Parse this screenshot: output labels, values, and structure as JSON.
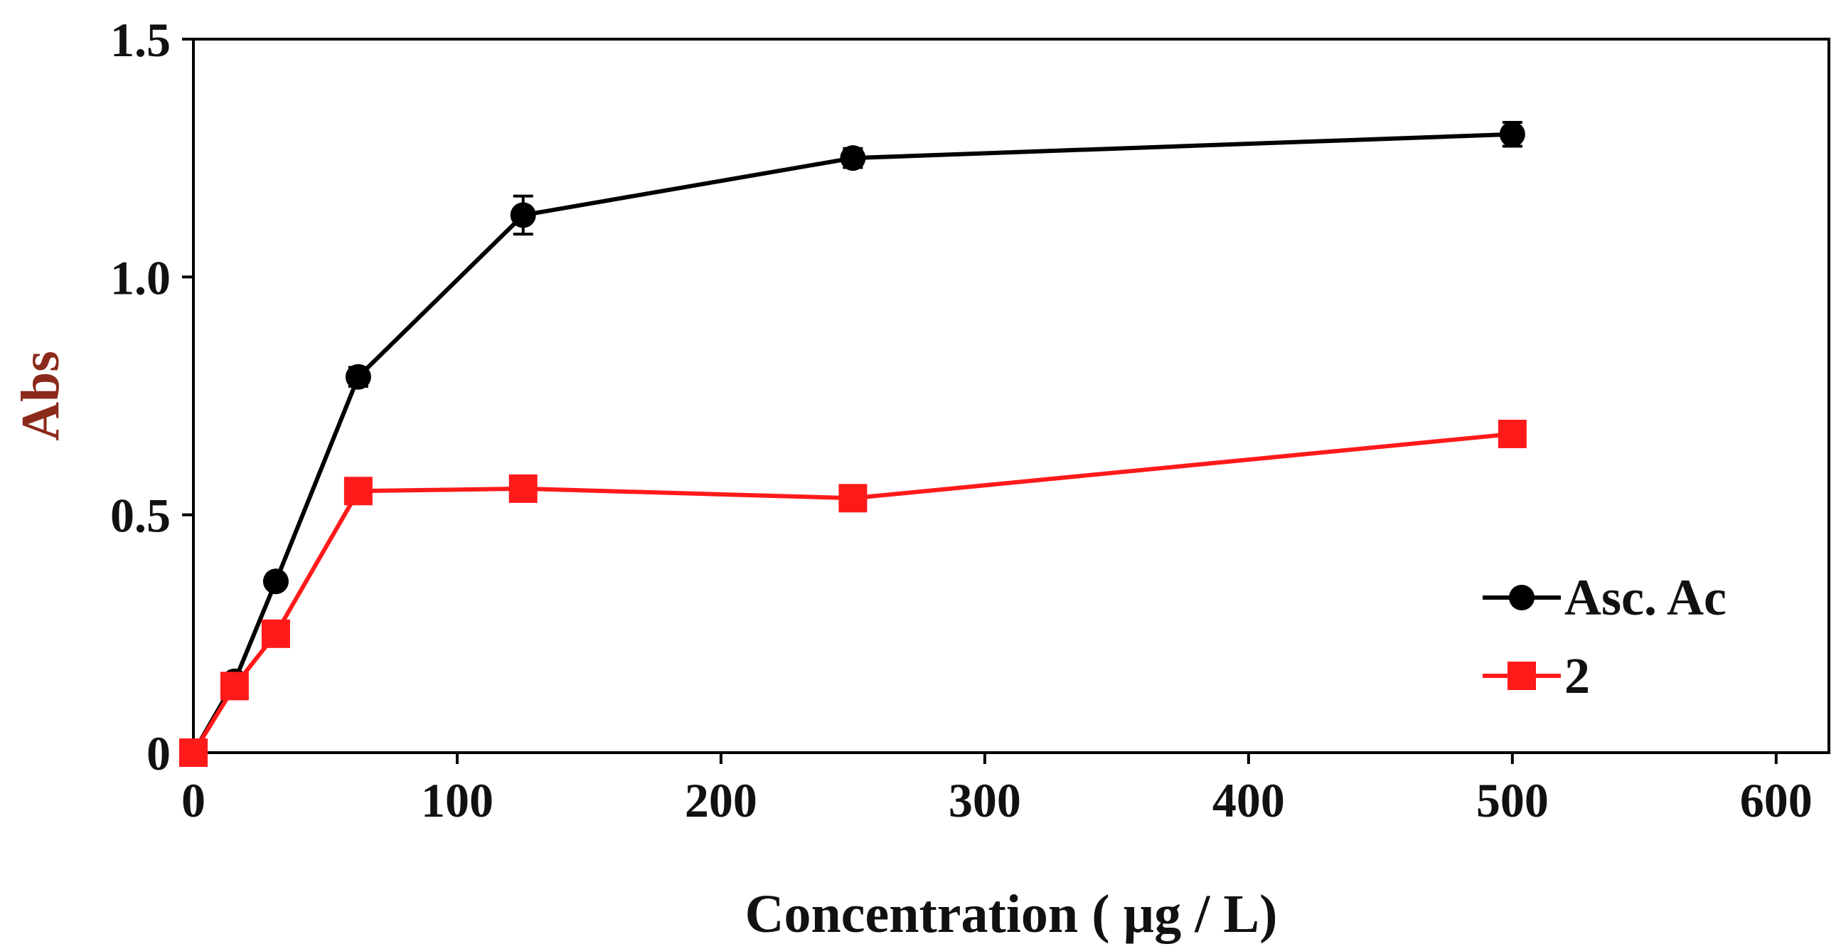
{
  "chart_data": {
    "type": "line",
    "title": "",
    "xlabel": "Concentration ( µg / L)",
    "ylabel": "Abs",
    "xlim": [
      0,
      620
    ],
    "ylim": [
      0,
      1.5
    ],
    "x_ticks": [
      0,
      100,
      200,
      300,
      400,
      500,
      600
    ],
    "x_tick_labels": [
      "0",
      "100",
      "200",
      "300",
      "400",
      "500",
      "600"
    ],
    "y_ticks": [
      0,
      0.5,
      1.0,
      1.5
    ],
    "y_tick_labels": [
      "0",
      "0.5",
      "1.0",
      "1.5"
    ],
    "grid": false,
    "legend_position": "bottom-right",
    "series": [
      {
        "name": "Asc. Ac",
        "color": "#000000",
        "marker": "circle",
        "x": [
          0,
          15.6,
          31.25,
          62.5,
          125,
          250,
          500
        ],
        "y": [
          0.0,
          0.15,
          0.36,
          0.79,
          1.13,
          1.25,
          1.3
        ],
        "error": [
          0.005,
          0.01,
          0.01,
          0.02,
          0.04,
          0.02,
          0.025
        ]
      },
      {
        "name": "2",
        "color": "#ff1a1a",
        "marker": "square",
        "x": [
          0,
          15.6,
          31.25,
          62.5,
          125,
          250,
          500
        ],
        "y": [
          0.0,
          0.14,
          0.25,
          0.55,
          0.555,
          0.535,
          0.67
        ],
        "error": [
          0.005,
          0.01,
          0.015,
          0.015,
          0.015,
          0.015,
          0.02
        ]
      }
    ]
  },
  "colors": {
    "axis": "#000000",
    "ylabel": "#8b2a1a",
    "xlabel": "#111111"
  }
}
